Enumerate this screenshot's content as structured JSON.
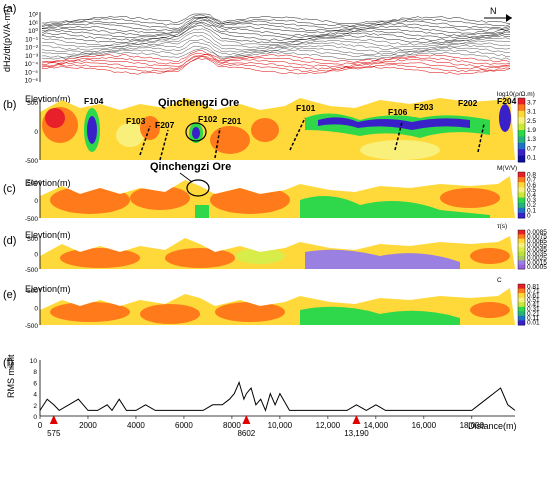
{
  "panels": {
    "a": {
      "letter": "(a)",
      "ylabel": "dHz/dt(pV/A·m⁴)",
      "yticks": [
        "10²",
        "10¹",
        "10⁰",
        "10⁻¹",
        "10⁻²",
        "10⁻³",
        "10⁻⁴",
        "10⁻⁵",
        "10⁻⁶"
      ],
      "north": "N"
    },
    "b": {
      "letter": "(b)",
      "elev": "Elevtion(m)",
      "ores": "Qinchengzi Ore",
      "faults": [
        "F104",
        "F103",
        "F207",
        "F102",
        "F201",
        "F101",
        "F106",
        "F203",
        "F202",
        "F204"
      ],
      "cb_title": "log10(ρ/Ω.m)",
      "cb_ticks": [
        "3.7",
        "3.1",
        "2.5",
        "1.9",
        "1.3",
        "0.7",
        "0.1"
      ],
      "cb_colors": [
        "#e8202a",
        "#ff7a1a",
        "#ffd83a",
        "#f8f07a",
        "#c8e83a",
        "#2fd84a",
        "#27b27a",
        "#2070c8",
        "#3a20c8",
        "#1010a0"
      ]
    },
    "c": {
      "letter": "(c)",
      "elev": "Elevtion(m)",
      "ores": "Qinchengzi Ore",
      "cb_title": "M(V/V)",
      "cb_ticks": [
        "0.8",
        "0.7",
        "0.6",
        "0.5",
        "0.4",
        "0.3",
        "0.2",
        "0.1",
        "0"
      ],
      "cb_colors": [
        "#e8202a",
        "#ff7a1a",
        "#ffd83a",
        "#f8f07a",
        "#c8e83a",
        "#2fd84a",
        "#27b27a",
        "#2070c8",
        "#3a20c8"
      ]
    },
    "d": {
      "letter": "(d)",
      "elev": "Elevtion(m)",
      "cb_title": "τ(s)",
      "cb_ticks": [
        "0.0085",
        "0.0075",
        "0.0065",
        "0.0055",
        "0.0045",
        "0.0035",
        "0.0025",
        "0.0015",
        "0.0005"
      ],
      "cb_colors": [
        "#e8202a",
        "#ff7a1a",
        "#ffd83a",
        "#f8f07a",
        "#d8ec4a",
        "#b8e23a",
        "#a8c860",
        "#9a80e0",
        "#9a60e0"
      ]
    },
    "e": {
      "letter": "(e)",
      "elev": "Elevtion(m)",
      "cb_title": "C",
      "cb_ticks": [
        "0.81",
        "0.71",
        "0.61",
        "0.51",
        "0.41",
        "0.31",
        "0.21",
        "0.11",
        "0.01"
      ],
      "cb_colors": [
        "#e8202a",
        "#ff7a1a",
        "#ffd83a",
        "#f8f07a",
        "#c8e83a",
        "#2fd84a",
        "#27b27a",
        "#2070c8",
        "#3a20c8"
      ]
    },
    "f": {
      "letter": "(f)",
      "ylabel": "RMS misfit",
      "yticks": [
        "10",
        "8",
        "6",
        "4",
        "2",
        "0"
      ],
      "markers": [
        "575",
        "8602",
        "13,190"
      ]
    }
  },
  "yaxis": [
    "500",
    "0",
    "-500"
  ],
  "xaxis": {
    "ticks": [
      "0",
      "2000",
      "4000",
      "6000",
      "8000",
      "10,000",
      "12,000",
      "14,000",
      "16,000",
      "18,000"
    ],
    "label": "Distance(m)"
  },
  "chart_data": {
    "type": "line",
    "title": "",
    "xlabel": "Distance(m)",
    "ylabel": "RMS misfit",
    "xlim": [
      0,
      19800
    ],
    "ylim": [
      0,
      10
    ],
    "x": [
      0,
      300,
      575,
      800,
      1200,
      1600,
      2000,
      2400,
      2800,
      3000,
      3300,
      3600,
      4000,
      4400,
      4800,
      5200,
      5600,
      6000,
      6400,
      6800,
      7200,
      7600,
      7900,
      8100,
      8300,
      8500,
      8602,
      8800,
      9000,
      9200,
      9400,
      9600,
      9800,
      10000,
      10400,
      10800,
      11200,
      11600,
      12000,
      12400,
      12800,
      13190,
      13600,
      14000,
      14400,
      14800,
      15200,
      15600,
      16000,
      16400,
      16800,
      17200,
      17600,
      18000,
      18300,
      18600,
      18900,
      19200,
      19500,
      19800
    ],
    "series": [
      {
        "values": [
          1,
          3,
          2,
          1,
          2,
          3,
          1,
          1,
          2,
          1,
          3,
          1,
          1,
          2,
          1,
          1,
          1,
          1,
          1,
          1,
          2,
          2,
          3,
          4,
          6,
          3,
          4,
          5,
          2,
          3,
          1,
          4,
          2,
          4,
          1,
          1,
          1,
          1,
          1,
          1,
          1,
          2,
          1,
          2,
          1,
          1,
          1,
          1,
          1,
          1,
          1,
          1,
          1,
          1,
          2,
          3,
          4,
          5,
          2,
          1
        ]
      }
    ]
  }
}
